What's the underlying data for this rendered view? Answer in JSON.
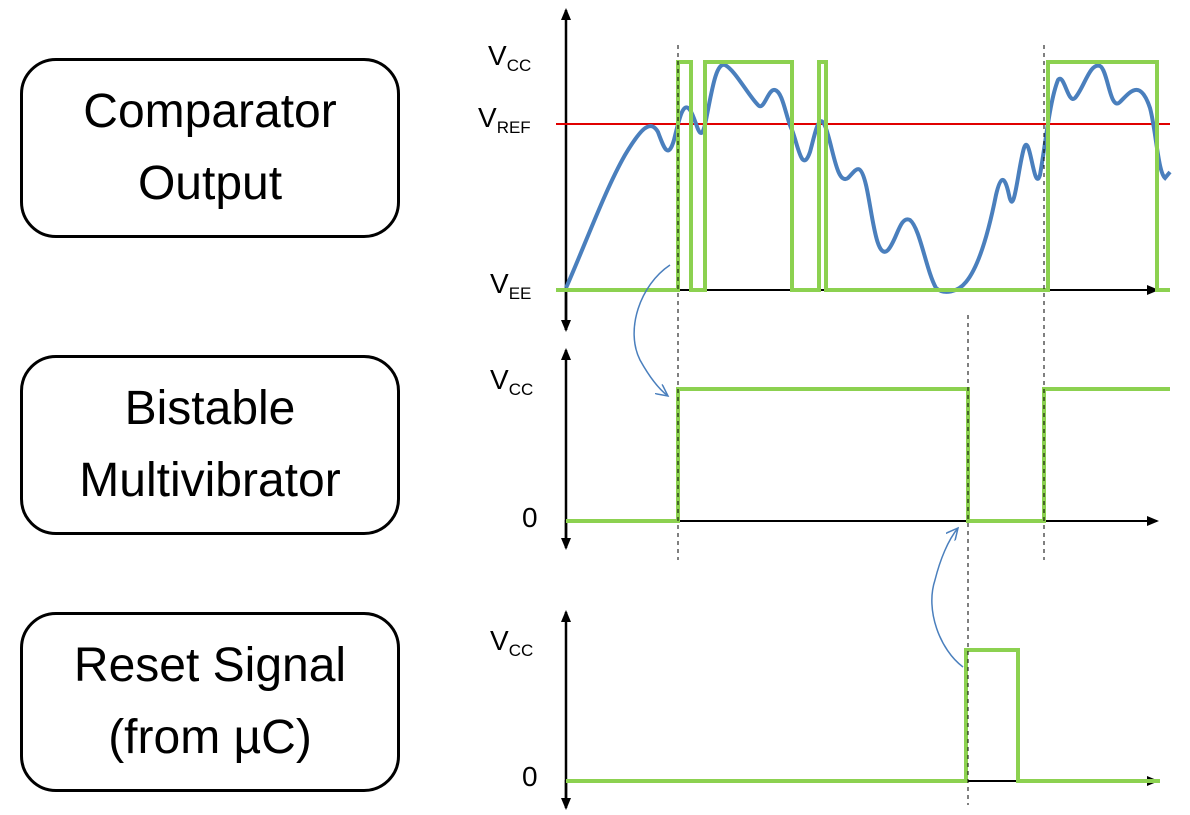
{
  "labels": {
    "comparator": {
      "line1": "Comparator",
      "line2": "Output"
    },
    "bistable": {
      "line1": "Bistable",
      "line2": "Multivibrator"
    },
    "reset": {
      "line1": "Reset Signal",
      "line2": "(from µC)"
    }
  },
  "axis_labels": {
    "vcc_main": "V",
    "vcc_sub": "CC",
    "vref_main": "V",
    "vref_sub": "REF",
    "vee_main": "V",
    "vee_sub": "EE",
    "zero": "0"
  },
  "colors": {
    "signal": "#8cd150",
    "analog": "#4a7fbd",
    "reference": "#e00000",
    "axis": "#000000"
  }
}
